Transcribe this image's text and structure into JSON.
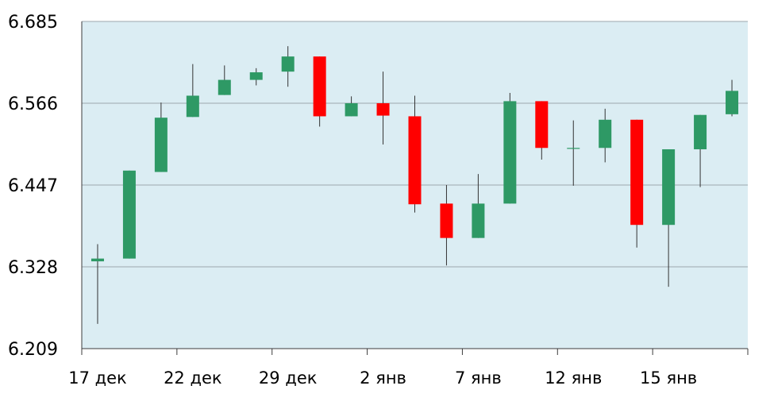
{
  "colors": {
    "plot_background": "#dbedf3",
    "grid": "#9ea7ad",
    "axis": "#3c3c3c",
    "up": "#2e9965",
    "down": "#ff0000",
    "wick": "#333333"
  },
  "chart_data": {
    "type": "candlestick",
    "ylim": [
      6.209,
      6.685
    ],
    "yticks": [
      "6.685",
      "6.566",
      "6.447",
      "6.328",
      "6.209"
    ],
    "xtick_labels": [
      "17 дек",
      "22 дек",
      "29 дек",
      "2 янв",
      "7 янв",
      "12 янв",
      "15 янв"
    ],
    "grid": "horizontal",
    "candles": [
      {
        "open": 6.336,
        "close": 6.34,
        "high": 6.361,
        "low": 6.245
      },
      {
        "open": 6.34,
        "close": 6.468,
        "high": 6.468,
        "low": 6.34
      },
      {
        "open": 6.466,
        "close": 6.545,
        "high": 6.567,
        "low": 6.466
      },
      {
        "open": 6.546,
        "close": 6.577,
        "high": 6.623,
        "low": 6.546
      },
      {
        "open": 6.578,
        "close": 6.6,
        "high": 6.621,
        "low": 6.578
      },
      {
        "open": 6.6,
        "close": 6.611,
        "high": 6.617,
        "low": 6.592
      },
      {
        "open": 6.612,
        "close": 6.634,
        "high": 6.649,
        "low": 6.59
      },
      {
        "open": 6.634,
        "close": 6.547,
        "high": 6.634,
        "low": 6.532
      },
      {
        "open": 6.547,
        "close": 6.566,
        "high": 6.576,
        "low": 6.547
      },
      {
        "open": 6.566,
        "close": 6.548,
        "high": 6.612,
        "low": 6.506
      },
      {
        "open": 6.547,
        "close": 6.419,
        "high": 6.577,
        "low": 6.407
      },
      {
        "open": 6.42,
        "close": 6.37,
        "high": 6.447,
        "low": 6.33
      },
      {
        "open": 6.37,
        "close": 6.42,
        "high": 6.463,
        "low": 6.37
      },
      {
        "open": 6.42,
        "close": 6.569,
        "high": 6.581,
        "low": 6.42
      },
      {
        "open": 6.569,
        "close": 6.501,
        "high": 6.569,
        "low": 6.484
      },
      {
        "open": 6.501,
        "close": 6.501,
        "high": 6.541,
        "low": 6.446
      },
      {
        "open": 6.501,
        "close": 6.542,
        "high": 6.558,
        "low": 6.48
      },
      {
        "open": 6.542,
        "close": 6.389,
        "high": 6.542,
        "low": 6.356
      },
      {
        "open": 6.389,
        "close": 6.499,
        "high": 6.499,
        "low": 6.299
      },
      {
        "open": 6.499,
        "close": 6.549,
        "high": 6.549,
        "low": 6.444
      },
      {
        "open": 6.55,
        "close": 6.584,
        "high": 6.6,
        "low": 6.547
      }
    ]
  }
}
